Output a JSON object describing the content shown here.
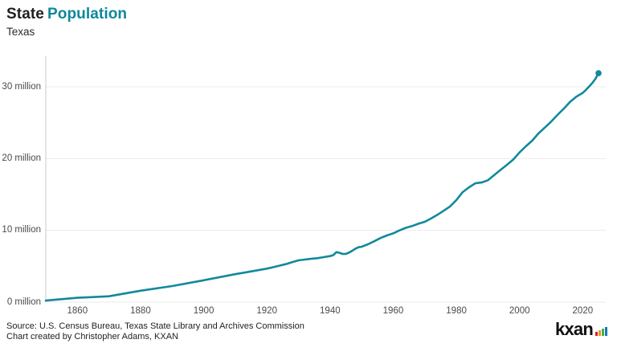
{
  "header": {
    "title_primary": "State",
    "title_accent": "Population",
    "subtitle": "Texas"
  },
  "footer": {
    "source_line1": "Source: U.S. Census Bureau, Texas State Library and Archives Commission",
    "source_line2": "Chart created by Christopher Adams, KXAN",
    "logo_text": "kxan",
    "logo_bars_icon": "signal-bars-icon"
  },
  "colors": {
    "accent_teal": "#0f879b",
    "line": "#12899c",
    "title_dark": "#231f20",
    "axis_text": "#4a4a4a",
    "gridline": "#ebebeb",
    "axis_line": "#c9c9c9",
    "logo_bar_colors": [
      "#d21f26",
      "#f7941d",
      "#39b54a",
      "#1b75bb"
    ]
  },
  "chart_data": {
    "type": "line",
    "title": "State Population",
    "subtitle": "Texas",
    "series_name": "Texas population",
    "unit": "millions of people",
    "xlabel": "",
    "ylabel": "",
    "xlim": [
      1850,
      2025
    ],
    "ylim": [
      0,
      30
    ],
    "grid": "horizontal gridlines at 0, 10, 20, 30 million",
    "legend": "none",
    "x_ticks": [
      "1860",
      "1880",
      "1900",
      "1920",
      "1940",
      "1960",
      "1980",
      "2000",
      "2020"
    ],
    "y_ticks": [
      {
        "value": 0,
        "label": "0 million"
      },
      {
        "value": 10,
        "label": "10 million"
      },
      {
        "value": 20,
        "label": "20 million"
      },
      {
        "value": 30,
        "label": "30 million"
      }
    ],
    "points": [
      [
        1850,
        0.213
      ],
      [
        1860,
        0.604
      ],
      [
        1865,
        0.7
      ],
      [
        1870,
        0.819
      ],
      [
        1880,
        1.592
      ],
      [
        1890,
        2.236
      ],
      [
        1900,
        3.049
      ],
      [
        1910,
        3.897
      ],
      [
        1915,
        4.28
      ],
      [
        1918,
        4.51
      ],
      [
        1920,
        4.663
      ],
      [
        1922,
        4.87
      ],
      [
        1924,
        5.08
      ],
      [
        1926,
        5.3
      ],
      [
        1928,
        5.56
      ],
      [
        1930,
        5.825
      ],
      [
        1932,
        5.93
      ],
      [
        1934,
        6.03
      ],
      [
        1936,
        6.12
      ],
      [
        1938,
        6.27
      ],
      [
        1940,
        6.415
      ],
      [
        1941,
        6.55
      ],
      [
        1942,
        6.96
      ],
      [
        1943,
        6.87
      ],
      [
        1944,
        6.71
      ],
      [
        1945,
        6.72
      ],
      [
        1946,
        6.91
      ],
      [
        1947,
        7.14
      ],
      [
        1948,
        7.43
      ],
      [
        1949,
        7.65
      ],
      [
        1950,
        7.711
      ],
      [
        1952,
        8.06
      ],
      [
        1954,
        8.48
      ],
      [
        1956,
        8.93
      ],
      [
        1958,
        9.29
      ],
      [
        1960,
        9.58
      ],
      [
        1962,
        10.0
      ],
      [
        1964,
        10.35
      ],
      [
        1966,
        10.6
      ],
      [
        1968,
        10.92
      ],
      [
        1970,
        11.197
      ],
      [
        1972,
        11.65
      ],
      [
        1974,
        12.17
      ],
      [
        1976,
        12.74
      ],
      [
        1978,
        13.33
      ],
      [
        1980,
        14.229
      ],
      [
        1982,
        15.33
      ],
      [
        1984,
        16.0
      ],
      [
        1986,
        16.56
      ],
      [
        1988,
        16.67
      ],
      [
        1990,
        16.986
      ],
      [
        1992,
        17.71
      ],
      [
        1994,
        18.42
      ],
      [
        1996,
        19.13
      ],
      [
        1998,
        19.87
      ],
      [
        2000,
        20.852
      ],
      [
        2002,
        21.72
      ],
      [
        2004,
        22.49
      ],
      [
        2006,
        23.51
      ],
      [
        2008,
        24.33
      ],
      [
        2010,
        25.146
      ],
      [
        2012,
        26.08
      ],
      [
        2014,
        26.96
      ],
      [
        2016,
        27.91
      ],
      [
        2018,
        28.63
      ],
      [
        2020,
        29.146
      ],
      [
        2021,
        29.56
      ],
      [
        2022,
        30.03
      ],
      [
        2023,
        30.5
      ],
      [
        2024,
        31.1
      ],
      [
        2025,
        31.9
      ]
    ],
    "end_marker": {
      "year": 2025,
      "value": 31.9
    }
  }
}
